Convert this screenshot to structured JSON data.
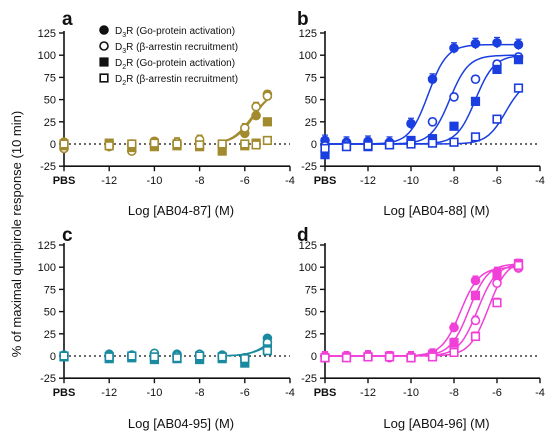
{
  "figure": {
    "ylabel": "% of maximal quinpirole response (10 min)"
  },
  "chart_data": [
    {
      "panel": "a",
      "type": "scatter",
      "compound": "AB04-87",
      "xlabel": "Log [AB04-87] (M)",
      "color": "#a28a2e",
      "xlim": [
        -14,
        -4
      ],
      "ylim": [
        -25,
        125
      ],
      "xticks": [
        "PBS",
        "-12",
        "-10",
        "-8",
        "-6",
        "-4"
      ],
      "yticks": [
        "-25",
        "0",
        "25",
        "50",
        "75",
        "100",
        "125"
      ],
      "legend": [
        {
          "label_base": "D",
          "label_sub": "3",
          "label_rest": "R (Go-protein activation)",
          "marker": "circle-filled"
        },
        {
          "label_base": "D",
          "label_sub": "3",
          "label_rest": "R (β-arrestin recruitment)",
          "marker": "circle-open"
        },
        {
          "label_base": "D",
          "label_sub": "2",
          "label_rest": "R (Go-protein activation)",
          "marker": "square-filled"
        },
        {
          "label_base": "D",
          "label_sub": "2",
          "label_rest": "R (β-arrestin recruitment)",
          "marker": "square-open"
        }
      ],
      "series": [
        {
          "marker": "circle-filled",
          "points": [
            [
              -14,
              2
            ],
            [
              -12,
              -1
            ],
            [
              -11,
              0
            ],
            [
              -10,
              3
            ],
            [
              -9,
              -1
            ],
            [
              -8,
              1
            ],
            [
              -7,
              -3
            ],
            [
              -6,
              12
            ],
            [
              -5.5,
              32
            ],
            [
              -5,
              56
            ]
          ],
          "err": 4,
          "curve": {
            "bottom": 0,
            "top": 62,
            "log_ec50": -5.6,
            "from": -7
          }
        },
        {
          "marker": "circle-open",
          "points": [
            [
              -14,
              -5
            ],
            [
              -12,
              -3
            ],
            [
              -11,
              -8
            ],
            [
              -10,
              1
            ],
            [
              -9,
              2
            ],
            [
              -8,
              5
            ],
            [
              -7,
              -2
            ],
            [
              -6,
              18
            ],
            [
              -5.5,
              42
            ],
            [
              -5,
              54
            ]
          ],
          "err": 5,
          "curve": {
            "bottom": 0,
            "top": 60,
            "log_ec50": -5.7,
            "from": -7
          }
        },
        {
          "marker": "square-filled",
          "points": [
            [
              -14,
              -2
            ],
            [
              -12,
              1
            ],
            [
              -11,
              -4
            ],
            [
              -10,
              -3
            ],
            [
              -9,
              -2
            ],
            [
              -8,
              -3
            ],
            [
              -7,
              -8
            ],
            [
              -6,
              -2
            ],
            [
              -5.5,
              1
            ],
            [
              -5,
              25
            ]
          ],
          "err": 3
        },
        {
          "marker": "square-open",
          "points": [
            [
              -14,
              0
            ],
            [
              -12,
              -2
            ],
            [
              -11,
              0
            ],
            [
              -10,
              1
            ],
            [
              -9,
              0
            ],
            [
              -8,
              -1
            ],
            [
              -7,
              0
            ],
            [
              -6,
              0
            ],
            [
              -5.5,
              -1
            ],
            [
              -5,
              4
            ]
          ],
          "err": 3
        }
      ]
    },
    {
      "panel": "b",
      "type": "scatter",
      "compound": "AB04-88",
      "xlabel": "Log [AB04-88] (M)",
      "color": "#1a3ee0",
      "xlim": [
        -14,
        -4
      ],
      "ylim": [
        -25,
        125
      ],
      "xticks": [
        "PBS",
        "-12",
        "-10",
        "-8",
        "-6",
        "-4"
      ],
      "yticks": [
        "-25",
        "0",
        "25",
        "50",
        "75",
        "100",
        "125"
      ],
      "series": [
        {
          "marker": "circle-filled",
          "points": [
            [
              -14,
              4
            ],
            [
              -13,
              2
            ],
            [
              -12,
              3
            ],
            [
              -11,
              2
            ],
            [
              -10,
              23
            ],
            [
              -9,
              73
            ],
            [
              -8,
              108
            ],
            [
              -7,
              113
            ],
            [
              -6,
              114
            ],
            [
              -5,
              112
            ]
          ],
          "err": 6,
          "curve": {
            "bottom": 0,
            "top": 112,
            "log_ec50": -9.2,
            "from": -14
          }
        },
        {
          "marker": "circle-open",
          "points": [
            [
              -14,
              -2
            ],
            [
              -13,
              0
            ],
            [
              -12,
              -1
            ],
            [
              -11,
              0
            ],
            [
              -10,
              2
            ],
            [
              -9,
              25
            ],
            [
              -8,
              53
            ],
            [
              -7,
              73
            ],
            [
              -6,
              90
            ],
            [
              -5,
              98
            ]
          ],
          "err": 4,
          "curve": {
            "bottom": 0,
            "top": 100,
            "log_ec50": -8.2,
            "from": -14
          }
        },
        {
          "marker": "square-filled",
          "points": [
            [
              -14,
              -12
            ],
            [
              -13,
              -2
            ],
            [
              -12,
              -3
            ],
            [
              -11,
              -1
            ],
            [
              -10,
              4
            ],
            [
              -9,
              6
            ],
            [
              -8,
              20
            ],
            [
              -7,
              48
            ],
            [
              -6,
              84
            ],
            [
              -5,
              95
            ]
          ],
          "err": 4,
          "curve": {
            "bottom": 0,
            "top": 100,
            "log_ec50": -7.0,
            "from": -14
          }
        },
        {
          "marker": "square-open",
          "points": [
            [
              -14,
              -5
            ],
            [
              -13,
              -3
            ],
            [
              -12,
              -2
            ],
            [
              -11,
              -1
            ],
            [
              -10,
              0
            ],
            [
              -9,
              1
            ],
            [
              -8,
              2
            ],
            [
              -7,
              8
            ],
            [
              -6,
              28
            ],
            [
              -5,
              63
            ]
          ],
          "err": 3,
          "curve": {
            "bottom": 0,
            "top": 72,
            "log_ec50": -5.6,
            "from": -14
          }
        }
      ]
    },
    {
      "panel": "c",
      "type": "scatter",
      "compound": "AB04-95",
      "xlabel": "Log [AB04-95] (M)",
      "color": "#1a8aa0",
      "xlim": [
        -14,
        -4
      ],
      "ylim": [
        -25,
        125
      ],
      "xticks": [
        "PBS",
        "-12",
        "-10",
        "-8",
        "-6",
        "-4"
      ],
      "yticks": [
        "-25",
        "0",
        "25",
        "50",
        "75",
        "100",
        "125"
      ],
      "series": [
        {
          "marker": "circle-filled",
          "points": [
            [
              -14,
              1
            ],
            [
              -12,
              2
            ],
            [
              -11,
              0
            ],
            [
              -10,
              1
            ],
            [
              -9,
              2
            ],
            [
              -8,
              0
            ],
            [
              -7,
              1
            ],
            [
              -6,
              -2
            ],
            [
              -5,
              20
            ]
          ],
          "err": 3,
          "curve": {
            "bottom": 0,
            "top": 30,
            "log_ec50": -4.9,
            "from": -7
          }
        },
        {
          "marker": "circle-open",
          "points": [
            [
              -14,
              0
            ],
            [
              -12,
              -2
            ],
            [
              -11,
              1
            ],
            [
              -10,
              3
            ],
            [
              -9,
              0
            ],
            [
              -8,
              2
            ],
            [
              -7,
              -1
            ],
            [
              -6,
              -2
            ],
            [
              -5,
              15
            ]
          ],
          "err": 3,
          "curve": {
            "bottom": 0,
            "top": 22,
            "log_ec50": -5.0,
            "from": -7
          }
        },
        {
          "marker": "square-filled",
          "points": [
            [
              -14,
              -1
            ],
            [
              -12,
              -3
            ],
            [
              -11,
              -2
            ],
            [
              -10,
              -4
            ],
            [
              -9,
              -3
            ],
            [
              -8,
              -4
            ],
            [
              -7,
              -3
            ],
            [
              -6,
              -8
            ],
            [
              -5,
              8
            ]
          ],
          "err": 3
        },
        {
          "marker": "square-open",
          "points": [
            [
              -14,
              0
            ],
            [
              -12,
              -1
            ],
            [
              -11,
              0
            ],
            [
              -10,
              -1
            ],
            [
              -9,
              -2
            ],
            [
              -8,
              0
            ],
            [
              -7,
              -1
            ],
            [
              -6,
              -3
            ],
            [
              -5,
              6
            ]
          ],
          "err": 3
        }
      ]
    },
    {
      "panel": "d",
      "type": "scatter",
      "compound": "AB04-96",
      "xlabel": "Log [AB04-96] (M)",
      "color": "#f040d8",
      "xlim": [
        -14,
        -4
      ],
      "ylim": [
        -25,
        125
      ],
      "xticks": [
        "PBS",
        "-12",
        "-10",
        "-8",
        "-6",
        "-4"
      ],
      "yticks": [
        "-25",
        "0",
        "25",
        "50",
        "75",
        "100",
        "125"
      ],
      "series": [
        {
          "marker": "circle-filled",
          "points": [
            [
              -14,
              0
            ],
            [
              -13,
              -1
            ],
            [
              -12,
              1
            ],
            [
              -11,
              -2
            ],
            [
              -10,
              0
            ],
            [
              -9,
              3
            ],
            [
              -8,
              32
            ],
            [
              -7,
              85
            ],
            [
              -6,
              95
            ],
            [
              -5,
              99
            ]
          ],
          "err": 5,
          "curve": {
            "bottom": 0,
            "top": 100,
            "log_ec50": -7.7,
            "from": -14
          }
        },
        {
          "marker": "circle-open",
          "points": [
            [
              -14,
              -1
            ],
            [
              -13,
              0
            ],
            [
              -12,
              0
            ],
            [
              -11,
              -1
            ],
            [
              -10,
              -1
            ],
            [
              -9,
              1
            ],
            [
              -8,
              10
            ],
            [
              -7,
              40
            ],
            [
              -6,
              82
            ],
            [
              -5,
              100
            ]
          ],
          "err": 5,
          "curve": {
            "bottom": 0,
            "top": 104,
            "log_ec50": -6.9,
            "from": -14
          }
        },
        {
          "marker": "square-filled",
          "points": [
            [
              -14,
              -2
            ],
            [
              -13,
              -1
            ],
            [
              -12,
              -1
            ],
            [
              -11,
              0
            ],
            [
              -10,
              -2
            ],
            [
              -9,
              2
            ],
            [
              -8,
              15
            ],
            [
              -7,
              68
            ],
            [
              -6,
              91
            ],
            [
              -5,
              104
            ]
          ],
          "err": 5,
          "curve": {
            "bottom": 0,
            "top": 104,
            "log_ec50": -7.3,
            "from": -14
          }
        },
        {
          "marker": "square-open",
          "points": [
            [
              -14,
              -2
            ],
            [
              -13,
              -2
            ],
            [
              -12,
              -1
            ],
            [
              -11,
              -1
            ],
            [
              -10,
              -2
            ],
            [
              -9,
              -1
            ],
            [
              -8,
              4
            ],
            [
              -7,
              22
            ],
            [
              -6,
              60
            ],
            [
              -5,
              102
            ]
          ],
          "err": 5,
          "curve": {
            "bottom": 0,
            "top": 108,
            "log_ec50": -6.4,
            "from": -14
          }
        }
      ]
    }
  ]
}
